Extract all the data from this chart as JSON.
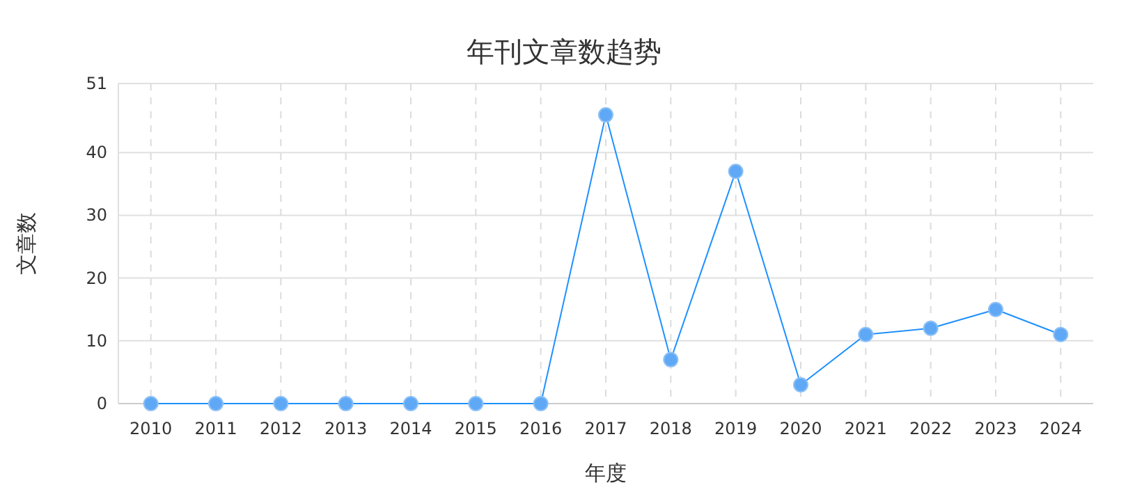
{
  "chart_data": {
    "type": "line",
    "title": "年刊文章数趋势",
    "xlabel": "年度",
    "ylabel": "文章数",
    "categories": [
      "2010",
      "2011",
      "2012",
      "2013",
      "2014",
      "2015",
      "2016",
      "2017",
      "2018",
      "2019",
      "2020",
      "2021",
      "2022",
      "2023",
      "2024"
    ],
    "values": [
      0,
      0,
      0,
      0,
      0,
      0,
      0,
      46,
      7,
      37,
      3,
      11,
      12,
      15,
      11
    ],
    "color": "#1e90ff",
    "marker": "circle",
    "line_style": "solid",
    "grid": true,
    "ylim": [
      0,
      51
    ],
    "yticks": [
      0,
      10,
      20,
      30,
      40,
      51
    ]
  }
}
